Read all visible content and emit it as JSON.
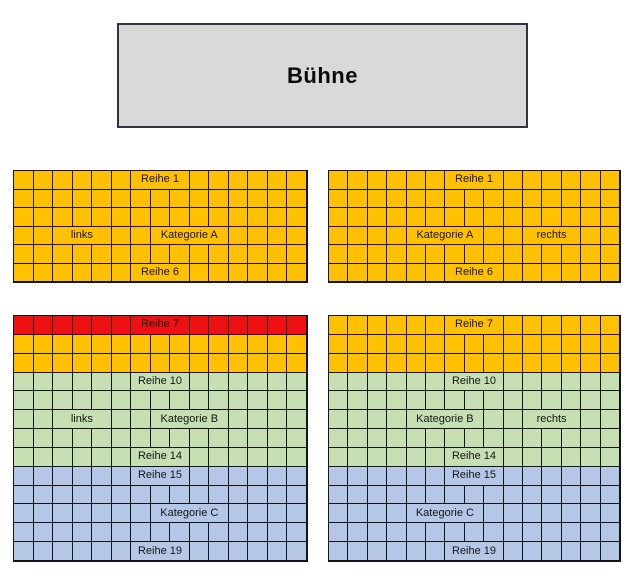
{
  "stage": {
    "label": "Bühne"
  },
  "colors": {
    "orange": "#FFC000",
    "red": "#EE1111",
    "green": "#C6E0B4",
    "blue": "#B4C7E7",
    "stage_bg": "#D9D9D9",
    "stage_border": "#2e3440",
    "grid_line": "#151515"
  },
  "blocks": [
    {
      "id": "top-left",
      "cols": 15,
      "rows": [
        {
          "color": "orange",
          "segments": [
            {
              "seats": 6
            },
            {
              "label": "Reihe 1",
              "span": 3,
              "kind": "row-label"
            },
            {
              "seats": 6
            }
          ]
        },
        {
          "color": "orange",
          "segments": [
            {
              "seats": 15
            }
          ]
        },
        {
          "color": "orange",
          "segments": [
            {
              "seats": 15
            }
          ]
        },
        {
          "color": "orange",
          "segments": [
            {
              "seats": 2
            },
            {
              "label": "links",
              "span": 3,
              "kind": "side-label"
            },
            {
              "seats": 2
            },
            {
              "label": "Kategorie A",
              "span": 4,
              "kind": "category-label"
            },
            {
              "seats": 4
            }
          ]
        },
        {
          "color": "orange",
          "segments": [
            {
              "seats": 15
            }
          ]
        },
        {
          "color": "orange",
          "segments": [
            {
              "seats": 6
            },
            {
              "label": "Reihe 6",
              "span": 3,
              "kind": "row-label"
            },
            {
              "seats": 6
            }
          ]
        }
      ]
    },
    {
      "id": "top-right",
      "cols": 15,
      "rows": [
        {
          "color": "orange",
          "segments": [
            {
              "seats": 6
            },
            {
              "label": "Reihe 1",
              "span": 3,
              "kind": "row-label"
            },
            {
              "seats": 6
            }
          ]
        },
        {
          "color": "orange",
          "segments": [
            {
              "seats": 15
            }
          ]
        },
        {
          "color": "orange",
          "segments": [
            {
              "seats": 15
            }
          ]
        },
        {
          "color": "orange",
          "segments": [
            {
              "seats": 4
            },
            {
              "label": "Kategorie A",
              "span": 4,
              "kind": "category-label"
            },
            {
              "seats": 2
            },
            {
              "label": "rechts",
              "span": 3,
              "kind": "side-label"
            },
            {
              "seats": 2
            }
          ]
        },
        {
          "color": "orange",
          "segments": [
            {
              "seats": 15
            }
          ]
        },
        {
          "color": "orange",
          "segments": [
            {
              "seats": 6
            },
            {
              "label": "Reihe 6",
              "span": 3,
              "kind": "row-label"
            },
            {
              "seats": 6
            }
          ]
        }
      ]
    },
    {
      "id": "bottom-left",
      "cols": 15,
      "rows": [
        {
          "color": "red",
          "segments": [
            {
              "seats": 6
            },
            {
              "label": "Reihe 7",
              "span": 3,
              "kind": "row-label"
            },
            {
              "seats": 6
            }
          ]
        },
        {
          "color": "orange",
          "segments": [
            {
              "seats": 15
            }
          ]
        },
        {
          "color": "orange",
          "segments": [
            {
              "seats": 15
            }
          ]
        },
        {
          "color": "green",
          "segments": [
            {
              "seats": 6
            },
            {
              "label": "Reihe 10",
              "span": 3,
              "kind": "row-label"
            },
            {
              "seats": 6
            }
          ]
        },
        {
          "color": "green",
          "segments": [
            {
              "seats": 15
            }
          ]
        },
        {
          "color": "green",
          "segments": [
            {
              "seats": 2
            },
            {
              "label": "links",
              "span": 3,
              "kind": "side-label"
            },
            {
              "seats": 2
            },
            {
              "label": "Kategorie B",
              "span": 4,
              "kind": "category-label"
            },
            {
              "seats": 4
            }
          ]
        },
        {
          "color": "green",
          "segments": [
            {
              "seats": 15
            }
          ]
        },
        {
          "color": "green",
          "segments": [
            {
              "seats": 6
            },
            {
              "label": "Reihe 14",
              "span": 3,
              "kind": "row-label"
            },
            {
              "seats": 6
            }
          ]
        },
        {
          "color": "blue",
          "segments": [
            {
              "seats": 6
            },
            {
              "label": "Reihe 15",
              "span": 3,
              "kind": "row-label"
            },
            {
              "seats": 6
            }
          ]
        },
        {
          "color": "blue",
          "segments": [
            {
              "seats": 15
            }
          ]
        },
        {
          "color": "blue",
          "segments": [
            {
              "seats": 7
            },
            {
              "label": "Kategorie C",
              "span": 4,
              "kind": "category-label"
            },
            {
              "seats": 4
            }
          ]
        },
        {
          "color": "blue",
          "segments": [
            {
              "seats": 15
            }
          ]
        },
        {
          "color": "blue",
          "segments": [
            {
              "seats": 6
            },
            {
              "label": "Reihe 19",
              "span": 3,
              "kind": "row-label"
            },
            {
              "seats": 6
            }
          ]
        }
      ]
    },
    {
      "id": "bottom-right",
      "cols": 15,
      "rows": [
        {
          "color": "orange",
          "segments": [
            {
              "seats": 6
            },
            {
              "label": "Reihe 7",
              "span": 3,
              "kind": "row-label"
            },
            {
              "seats": 6
            }
          ]
        },
        {
          "color": "orange",
          "segments": [
            {
              "seats": 15
            }
          ]
        },
        {
          "color": "orange",
          "segments": [
            {
              "seats": 15
            }
          ]
        },
        {
          "color": "green",
          "segments": [
            {
              "seats": 6
            },
            {
              "label": "Reihe 10",
              "span": 3,
              "kind": "row-label"
            },
            {
              "seats": 6
            }
          ]
        },
        {
          "color": "green",
          "segments": [
            {
              "seats": 15
            }
          ]
        },
        {
          "color": "green",
          "segments": [
            {
              "seats": 4
            },
            {
              "label": "Kategorie B",
              "span": 4,
              "kind": "category-label"
            },
            {
              "seats": 2
            },
            {
              "label": "rechts",
              "span": 3,
              "kind": "side-label"
            },
            {
              "seats": 2
            }
          ]
        },
        {
          "color": "green",
          "segments": [
            {
              "seats": 15
            }
          ]
        },
        {
          "color": "green",
          "segments": [
            {
              "seats": 6
            },
            {
              "label": "Reihe 14",
              "span": 3,
              "kind": "row-label"
            },
            {
              "seats": 6
            }
          ]
        },
        {
          "color": "blue",
          "segments": [
            {
              "seats": 6
            },
            {
              "label": "Reihe 15",
              "span": 3,
              "kind": "row-label"
            },
            {
              "seats": 6
            }
          ]
        },
        {
          "color": "blue",
          "segments": [
            {
              "seats": 15
            }
          ]
        },
        {
          "color": "blue",
          "segments": [
            {
              "seats": 4
            },
            {
              "label": "Kategorie C",
              "span": 4,
              "kind": "category-label"
            },
            {
              "seats": 7
            }
          ]
        },
        {
          "color": "blue",
          "segments": [
            {
              "seats": 15
            }
          ]
        },
        {
          "color": "blue",
          "segments": [
            {
              "seats": 6
            },
            {
              "label": "Reihe 19",
              "span": 3,
              "kind": "row-label"
            },
            {
              "seats": 6
            }
          ]
        }
      ]
    }
  ]
}
